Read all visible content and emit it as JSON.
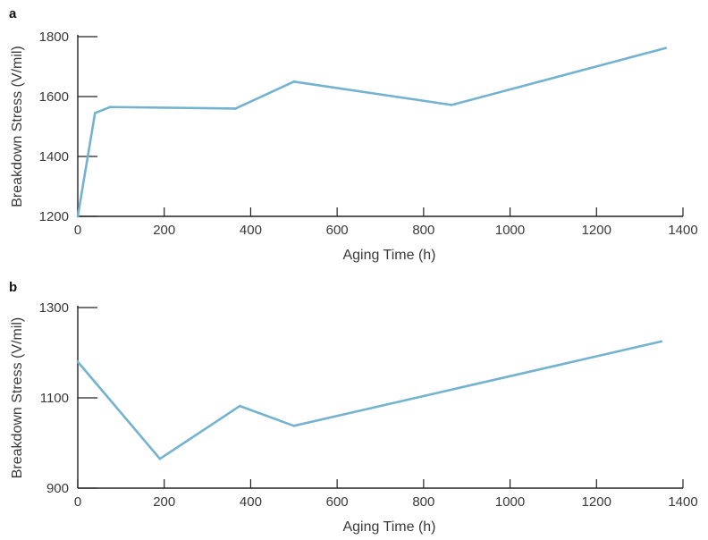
{
  "chart_data": [
    {
      "panel_label": "a",
      "type": "line",
      "xlabel": "Aging Time (h)",
      "ylabel": "Breakdown Stress (V/mil)",
      "xlim": [
        0,
        1400
      ],
      "ylim": [
        1200,
        1800
      ],
      "xticks": [
        0,
        200,
        400,
        600,
        800,
        1000,
        1200,
        1400
      ],
      "yticks": [
        1200,
        1400,
        1600,
        1800
      ],
      "series": [
        {
          "color": "#74b3d0",
          "x": [
            0,
            40,
            75,
            365,
            500,
            865,
            1360
          ],
          "y": [
            1200,
            1545,
            1565,
            1560,
            1650,
            1572,
            1762
          ]
        }
      ]
    },
    {
      "panel_label": "b",
      "type": "line",
      "xlabel": "Aging Time (h)",
      "ylabel": "Breakdown Stress (V/mil)",
      "xlim": [
        0,
        1400
      ],
      "ylim": [
        900,
        1300
      ],
      "xticks": [
        0,
        200,
        400,
        600,
        800,
        1000,
        1200,
        1400
      ],
      "yticks": [
        900,
        1100,
        1300
      ],
      "series": [
        {
          "color": "#74b3d0",
          "x": [
            0,
            190,
            375,
            500,
            1350
          ],
          "y": [
            1180,
            965,
            1082,
            1038,
            1225
          ]
        }
      ]
    }
  ]
}
